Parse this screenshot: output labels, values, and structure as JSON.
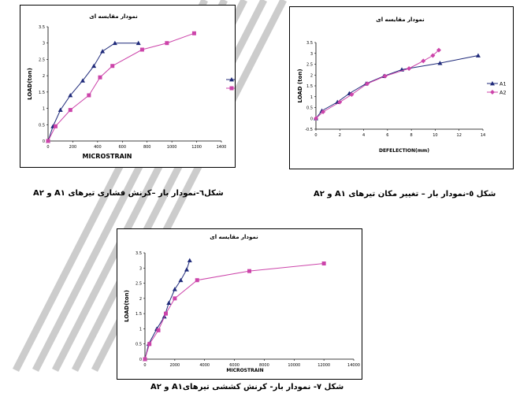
{
  "figures": [
    {
      "id": "fig6",
      "caption": "شکل٦-نمودار بار –کرنش فشاری تیرهای A١ و A٢",
      "chart_data": {
        "type": "line",
        "title": "نمودار مقایسه ای",
        "xlabel": "MICROSTRAIN",
        "ylabel": "LOAD(ton)",
        "xlim": [
          0,
          1400
        ],
        "ylim": [
          0,
          3.5
        ],
        "xticks": [
          "0",
          "200",
          "400",
          "600",
          "800",
          "1000",
          "1200",
          "1400"
        ],
        "yticks": [
          "0",
          "0.5",
          "1",
          "1.5",
          "2",
          "2.5",
          "3",
          "3.5"
        ],
        "legend_position": "right",
        "series": [
          {
            "name": "A1",
            "color": "#1f2a7a",
            "marker": "triangle",
            "x": [
              0,
              40,
              100,
              180,
              280,
              370,
              440,
              540,
              730
            ],
            "y": [
              0,
              0.45,
              0.95,
              1.4,
              1.85,
              2.3,
              2.75,
              3.0,
              3.0
            ]
          },
          {
            "name": "A2",
            "color": "#cc44aa",
            "marker": "square",
            "x": [
              0,
              60,
              180,
              330,
              420,
              520,
              760,
              960,
              1180
            ],
            "y": [
              0,
              0.45,
              0.95,
              1.4,
              1.95,
              2.3,
              2.8,
              3.0,
              3.3
            ]
          }
        ]
      }
    },
    {
      "id": "fig5",
      "caption": "شکل ٥-نمودار بار – تغییر مکان تیرهای A١ و A٢",
      "chart_data": {
        "type": "line",
        "title": "نمودار مقایسه ای",
        "xlabel": "DEFELECTION(mm)",
        "ylabel": "LOAD (ton)",
        "xlim": [
          0,
          14
        ],
        "ylim": [
          -0.5,
          3.5
        ],
        "xticks": [
          "0",
          "2",
          "4",
          "6",
          "8",
          "10",
          "12",
          "14"
        ],
        "yticks": [
          "-0.5",
          "0",
          "0.5",
          "1",
          "1.5",
          "2",
          "2.5",
          "3",
          "3.5"
        ],
        "legend_position": "right",
        "series": [
          {
            "name": "A1",
            "color": "#1f2a7a",
            "marker": "triangle",
            "x": [
              0,
              0.5,
              1.8,
              2.8,
              4.2,
              5.7,
              7.2,
              10.4,
              13.6
            ],
            "y": [
              0,
              0.35,
              0.75,
              1.15,
              1.6,
              1.95,
              2.25,
              2.55,
              2.9
            ]
          },
          {
            "name": "A2",
            "color": "#cc44aa",
            "marker": "diamond",
            "x": [
              0,
              0.6,
              2.0,
              3.0,
              4.3,
              5.8,
              7.8,
              9.0,
              9.8,
              10.3
            ],
            "y": [
              0,
              0.3,
              0.75,
              1.1,
              1.6,
              1.95,
              2.3,
              2.65,
              2.9,
              3.15
            ]
          }
        ]
      }
    },
    {
      "id": "fig7",
      "caption": "شکل ۷- نمودار بار- کرنش کششی تیرهایA١ و A٢",
      "chart_data": {
        "type": "line",
        "title": "نمودار مقایسه ای",
        "xlabel": "MICROSTRAIN",
        "ylabel": "LOAD(ton)",
        "xlim": [
          0,
          14000
        ],
        "ylim": [
          0,
          3.5
        ],
        "xticks": [
          "0",
          "2000",
          "4000",
          "6000",
          "8000",
          "10000",
          "12000",
          "14000"
        ],
        "yticks": [
          "0",
          "0.5",
          "1",
          "1.5",
          "2",
          "2.5",
          "3",
          "3.5"
        ],
        "legend_position": "none",
        "series": [
          {
            "name": "A1",
            "color": "#1f2a7a",
            "marker": "triangle",
            "x": [
              0,
              250,
              800,
              1300,
              1600,
              2000,
              2400,
              2800,
              3000
            ],
            "y": [
              0,
              0.5,
              1.0,
              1.4,
              1.85,
              2.3,
              2.6,
              2.95,
              3.25
            ]
          },
          {
            "name": "A2",
            "color": "#cc44aa",
            "marker": "square",
            "x": [
              0,
              300,
              900,
              1400,
              2000,
              3500,
              7000,
              12000
            ],
            "y": [
              0,
              0.5,
              0.95,
              1.5,
              2.0,
              2.6,
              2.9,
              3.15
            ]
          }
        ]
      }
    }
  ]
}
